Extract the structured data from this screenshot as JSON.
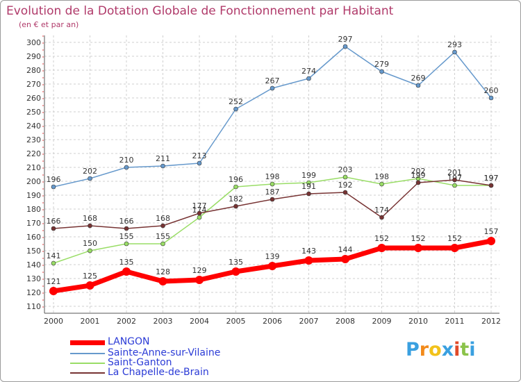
{
  "chart_data": {
    "type": "line",
    "title": "Evolution de la Dotation Globale de Fonctionnement par Habitant",
    "subtitle": "(en € et par an)",
    "xlabel": "",
    "ylabel": "",
    "x": [
      "2000",
      "2001",
      "2002",
      "2003",
      "2004",
      "2005",
      "2006",
      "2007",
      "2008",
      "2009",
      "2010",
      "2011",
      "2012"
    ],
    "ylim": [
      110,
      300
    ],
    "yticks": [
      110,
      120,
      130,
      140,
      150,
      160,
      170,
      180,
      190,
      200,
      210,
      220,
      230,
      240,
      250,
      260,
      270,
      280,
      290,
      300
    ],
    "grid": "horizontal dashed",
    "legend_position": "bottom-left",
    "series": [
      {
        "name": "LANGON",
        "color": "#ff0000",
        "values": [
          121,
          125,
          135,
          128,
          129,
          135,
          139,
          143,
          144,
          152,
          152,
          152,
          157
        ]
      },
      {
        "name": "Sainte-Anne-sur-Vilaine",
        "color": "#6699cc",
        "values": [
          196,
          202,
          210,
          211,
          213,
          252,
          267,
          274,
          297,
          279,
          269,
          293,
          260
        ]
      },
      {
        "name": "Saint-Ganton",
        "color": "#99dd66",
        "values": [
          141,
          150,
          155,
          155,
          174,
          196,
          198,
          199,
          203,
          198,
          202,
          197,
          197
        ]
      },
      {
        "name": "La Chapelle-de-Brain",
        "color": "#773333",
        "values": [
          166,
          168,
          166,
          168,
          177,
          182,
          187,
          191,
          192,
          174,
          199,
          201,
          197
        ]
      }
    ]
  },
  "brand": {
    "letters": [
      "P",
      "r",
      "o",
      "x",
      "i",
      "t",
      "i"
    ],
    "colors": [
      "#3aa0e0",
      "#f28a1a",
      "#f2c21a",
      "#3aa0e0",
      "#e04a2a",
      "#8bc34a",
      "#3aa0e0"
    ]
  }
}
